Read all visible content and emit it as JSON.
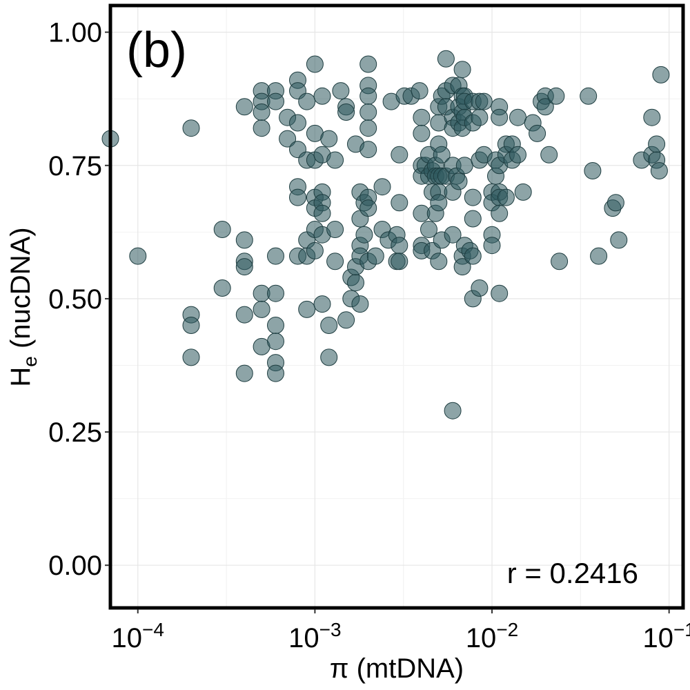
{
  "chart_data": {
    "type": "scatter",
    "panel_label": "(b)",
    "xlabel": "π (mtDNA)",
    "ylabel": "nucDNA",
    "ylabel_main": "H",
    "ylabel_sub": "e",
    "x_scale": "log10",
    "xlim": [
      7e-05,
      0.12
    ],
    "ylim": [
      -0.08,
      1.05
    ],
    "x_ticks": [
      {
        "value": 0.0001,
        "base": "10",
        "exp": "−4"
      },
      {
        "value": 0.001,
        "base": "10",
        "exp": "−3"
      },
      {
        "value": 0.01,
        "base": "10",
        "exp": "−2"
      },
      {
        "value": 0.1,
        "base": "10",
        "exp": "−1"
      }
    ],
    "y_ticks": [
      {
        "value": 0.0,
        "label": "0.00"
      },
      {
        "value": 0.25,
        "label": "0.25"
      },
      {
        "value": 0.5,
        "label": "0.50"
      },
      {
        "value": 0.75,
        "label": "0.75"
      },
      {
        "value": 1.0,
        "label": "1.00"
      }
    ],
    "annotation": "r = 0.2416",
    "grid": true,
    "point_color": "#2f5a5f",
    "point_stroke": "#1e3d40",
    "points": [
      [
        7e-05,
        0.8
      ],
      [
        0.0001,
        0.58
      ],
      [
        0.0002,
        0.82
      ],
      [
        0.0002,
        0.47
      ],
      [
        0.0002,
        0.45
      ],
      [
        0.0002,
        0.39
      ],
      [
        0.0003,
        0.63
      ],
      [
        0.0003,
        0.52
      ],
      [
        0.0004,
        0.86
      ],
      [
        0.0004,
        0.61
      ],
      [
        0.0004,
        0.57
      ],
      [
        0.0004,
        0.56
      ],
      [
        0.0004,
        0.47
      ],
      [
        0.0004,
        0.36
      ],
      [
        0.0005,
        0.89
      ],
      [
        0.0005,
        0.87
      ],
      [
        0.0005,
        0.85
      ],
      [
        0.0005,
        0.82
      ],
      [
        0.0005,
        0.51
      ],
      [
        0.0005,
        0.48
      ],
      [
        0.0005,
        0.41
      ],
      [
        0.0006,
        0.89
      ],
      [
        0.0006,
        0.87
      ],
      [
        0.0006,
        0.58
      ],
      [
        0.0006,
        0.51
      ],
      [
        0.0006,
        0.45
      ],
      [
        0.0006,
        0.42
      ],
      [
        0.0006,
        0.38
      ],
      [
        0.0006,
        0.36
      ],
      [
        0.0007,
        0.84
      ],
      [
        0.0007,
        0.8
      ],
      [
        0.0008,
        0.91
      ],
      [
        0.0008,
        0.89
      ],
      [
        0.0008,
        0.83
      ],
      [
        0.0008,
        0.78
      ],
      [
        0.0008,
        0.71
      ],
      [
        0.0008,
        0.69
      ],
      [
        0.0008,
        0.58
      ],
      [
        0.0009,
        0.87
      ],
      [
        0.0009,
        0.76
      ],
      [
        0.0009,
        0.61
      ],
      [
        0.0009,
        0.58
      ],
      [
        0.0009,
        0.48
      ],
      [
        0.001,
        0.94
      ],
      [
        0.001,
        0.81
      ],
      [
        0.001,
        0.76
      ],
      [
        0.001,
        0.69
      ],
      [
        0.001,
        0.67
      ],
      [
        0.001,
        0.63
      ],
      [
        0.001,
        0.59
      ],
      [
        0.0011,
        0.88
      ],
      [
        0.0011,
        0.77
      ],
      [
        0.0011,
        0.7
      ],
      [
        0.0011,
        0.68
      ],
      [
        0.0011,
        0.66
      ],
      [
        0.0011,
        0.62
      ],
      [
        0.0011,
        0.49
      ],
      [
        0.0012,
        0.8
      ],
      [
        0.0012,
        0.45
      ],
      [
        0.0012,
        0.39
      ],
      [
        0.0013,
        0.76
      ],
      [
        0.0013,
        0.63
      ],
      [
        0.0013,
        0.57
      ],
      [
        0.0014,
        0.89
      ],
      [
        0.0015,
        0.86
      ],
      [
        0.0015,
        0.85
      ],
      [
        0.0015,
        0.46
      ],
      [
        0.0016,
        0.54
      ],
      [
        0.0016,
        0.5
      ],
      [
        0.0017,
        0.53
      ],
      [
        0.0017,
        0.56
      ],
      [
        0.0017,
        0.79
      ],
      [
        0.0018,
        0.7
      ],
      [
        0.0018,
        0.65
      ],
      [
        0.0018,
        0.6
      ],
      [
        0.0018,
        0.58
      ],
      [
        0.0018,
        0.49
      ],
      [
        0.0019,
        0.68
      ],
      [
        0.0019,
        0.62
      ],
      [
        0.002,
        0.94
      ],
      [
        0.002,
        0.9
      ],
      [
        0.002,
        0.88
      ],
      [
        0.002,
        0.85
      ],
      [
        0.002,
        0.82
      ],
      [
        0.002,
        0.78
      ],
      [
        0.002,
        0.69
      ],
      [
        0.002,
        0.67
      ],
      [
        0.002,
        0.57
      ],
      [
        0.0022,
        0.58
      ],
      [
        0.0024,
        0.71
      ],
      [
        0.0024,
        0.63
      ],
      [
        0.0026,
        0.61
      ],
      [
        0.0027,
        0.87
      ],
      [
        0.0029,
        0.62
      ],
      [
        0.0029,
        0.57
      ],
      [
        0.003,
        0.77
      ],
      [
        0.003,
        0.68
      ],
      [
        0.003,
        0.6
      ],
      [
        0.003,
        0.57
      ],
      [
        0.0032,
        0.88
      ],
      [
        0.0035,
        0.88
      ],
      [
        0.0039,
        0.89
      ],
      [
        0.004,
        0.84
      ],
      [
        0.004,
        0.81
      ],
      [
        0.004,
        0.75
      ],
      [
        0.004,
        0.73
      ],
      [
        0.004,
        0.66
      ],
      [
        0.004,
        0.6
      ],
      [
        0.004,
        0.59
      ],
      [
        0.0042,
        0.75
      ],
      [
        0.0044,
        0.77
      ],
      [
        0.0044,
        0.73
      ],
      [
        0.0044,
        0.63
      ],
      [
        0.0046,
        0.74
      ],
      [
        0.0046,
        0.7
      ],
      [
        0.0046,
        0.59
      ],
      [
        0.0048,
        0.75
      ],
      [
        0.0048,
        0.73
      ],
      [
        0.0048,
        0.66
      ],
      [
        0.005,
        0.86
      ],
      [
        0.005,
        0.83
      ],
      [
        0.005,
        0.79
      ],
      [
        0.005,
        0.73
      ],
      [
        0.005,
        0.7
      ],
      [
        0.005,
        0.68
      ],
      [
        0.005,
        0.57
      ],
      [
        0.0052,
        0.88
      ],
      [
        0.0052,
        0.77
      ],
      [
        0.0052,
        0.73
      ],
      [
        0.0052,
        0.61
      ],
      [
        0.0055,
        0.95
      ],
      [
        0.0055,
        0.89
      ],
      [
        0.0055,
        0.86
      ],
      [
        0.0055,
        0.73
      ],
      [
        0.006,
        0.9
      ],
      [
        0.006,
        0.84
      ],
      [
        0.006,
        0.82
      ],
      [
        0.006,
        0.75
      ],
      [
        0.006,
        0.7
      ],
      [
        0.006,
        0.62
      ],
      [
        0.006,
        0.29
      ],
      [
        0.0063,
        0.73
      ],
      [
        0.0065,
        0.9
      ],
      [
        0.0065,
        0.86
      ],
      [
        0.0065,
        0.83
      ],
      [
        0.0065,
        0.72
      ],
      [
        0.0068,
        0.93
      ],
      [
        0.0068,
        0.88
      ],
      [
        0.0068,
        0.85
      ],
      [
        0.0068,
        0.82
      ],
      [
        0.0068,
        0.58
      ],
      [
        0.0068,
        0.56
      ],
      [
        0.007,
        0.88
      ],
      [
        0.007,
        0.87
      ],
      [
        0.007,
        0.84
      ],
      [
        0.007,
        0.75
      ],
      [
        0.007,
        0.6
      ],
      [
        0.0075,
        0.59
      ],
      [
        0.0078,
        0.87
      ],
      [
        0.0078,
        0.83
      ],
      [
        0.0078,
        0.69
      ],
      [
        0.0078,
        0.65
      ],
      [
        0.0078,
        0.58
      ],
      [
        0.0078,
        0.5
      ],
      [
        0.0085,
        0.87
      ],
      [
        0.0085,
        0.84
      ],
      [
        0.0085,
        0.76
      ],
      [
        0.0085,
        0.52
      ],
      [
        0.009,
        0.77
      ],
      [
        0.009,
        0.87
      ],
      [
        0.01,
        0.7
      ],
      [
        0.01,
        0.62
      ],
      [
        0.01,
        0.6
      ],
      [
        0.01,
        0.68
      ],
      [
        0.0105,
        0.76
      ],
      [
        0.0105,
        0.73
      ],
      [
        0.011,
        0.86
      ],
      [
        0.011,
        0.84
      ],
      [
        0.011,
        0.75
      ],
      [
        0.011,
        0.7
      ],
      [
        0.011,
        0.69
      ],
      [
        0.011,
        0.66
      ],
      [
        0.011,
        0.51
      ],
      [
        0.012,
        0.79
      ],
      [
        0.012,
        0.77
      ],
      [
        0.012,
        0.69
      ],
      [
        0.013,
        0.79
      ],
      [
        0.013,
        0.76
      ],
      [
        0.014,
        0.84
      ],
      [
        0.014,
        0.77
      ],
      [
        0.015,
        0.7
      ],
      [
        0.017,
        0.83
      ],
      [
        0.018,
        0.81
      ],
      [
        0.019,
        0.87
      ],
      [
        0.02,
        0.88
      ],
      [
        0.02,
        0.86
      ],
      [
        0.021,
        0.77
      ],
      [
        0.023,
        0.88
      ],
      [
        0.024,
        0.57
      ],
      [
        0.035,
        0.88
      ],
      [
        0.037,
        0.74
      ],
      [
        0.04,
        0.58
      ],
      [
        0.048,
        0.67
      ],
      [
        0.05,
        0.68
      ],
      [
        0.052,
        0.61
      ],
      [
        0.07,
        0.76
      ],
      [
        0.08,
        0.84
      ],
      [
        0.08,
        0.77
      ],
      [
        0.085,
        0.79
      ],
      [
        0.085,
        0.76
      ],
      [
        0.088,
        0.74
      ],
      [
        0.09,
        0.92
      ]
    ]
  }
}
